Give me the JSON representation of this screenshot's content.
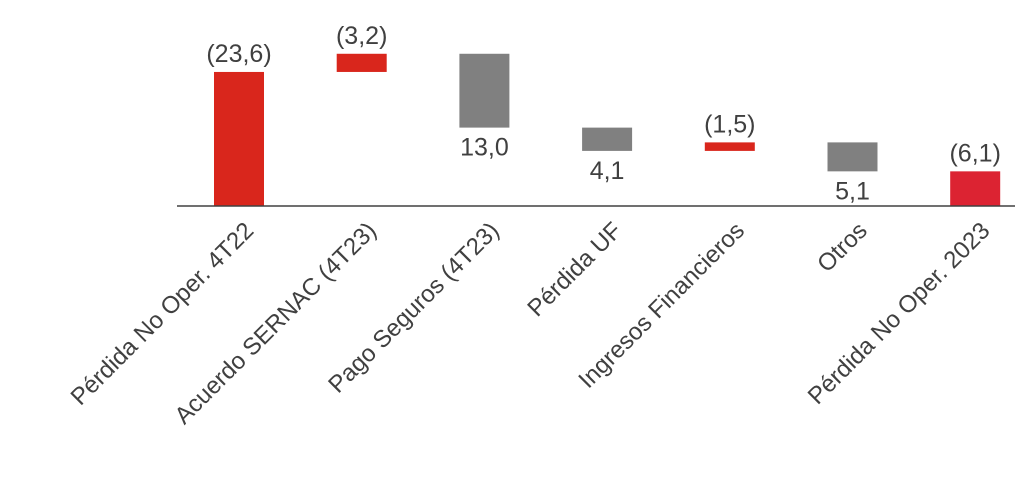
{
  "chart_data": {
    "type": "bar",
    "subtype": "waterfall",
    "categories": [
      "Pérdida No Oper. 4T22",
      "Acuerdo SERNAC (4T23)",
      "Pago Seguros (4T23)",
      "Pérdida UF",
      "Ingresos Financieros",
      "Otros",
      "Pérdida No Oper. 2023"
    ],
    "values": [
      -23.6,
      -3.2,
      13.0,
      4.1,
      -1.5,
      5.1,
      -6.1
    ],
    "measure": [
      "total",
      "relative",
      "relative",
      "relative",
      "relative",
      "relative",
      "total"
    ],
    "value_labels": [
      "(23,6)",
      "(3,2)",
      "13,0",
      "4,1",
      "(1,5)",
      "5,1",
      "(6,1)"
    ],
    "title": "",
    "xlabel": "",
    "ylabel": "",
    "colors": {
      "loss": "#D9261C",
      "gain": "#808080",
      "final": "#DC2332",
      "axis": "#404040",
      "text": "#404040"
    },
    "grid": false,
    "legend": "none"
  }
}
